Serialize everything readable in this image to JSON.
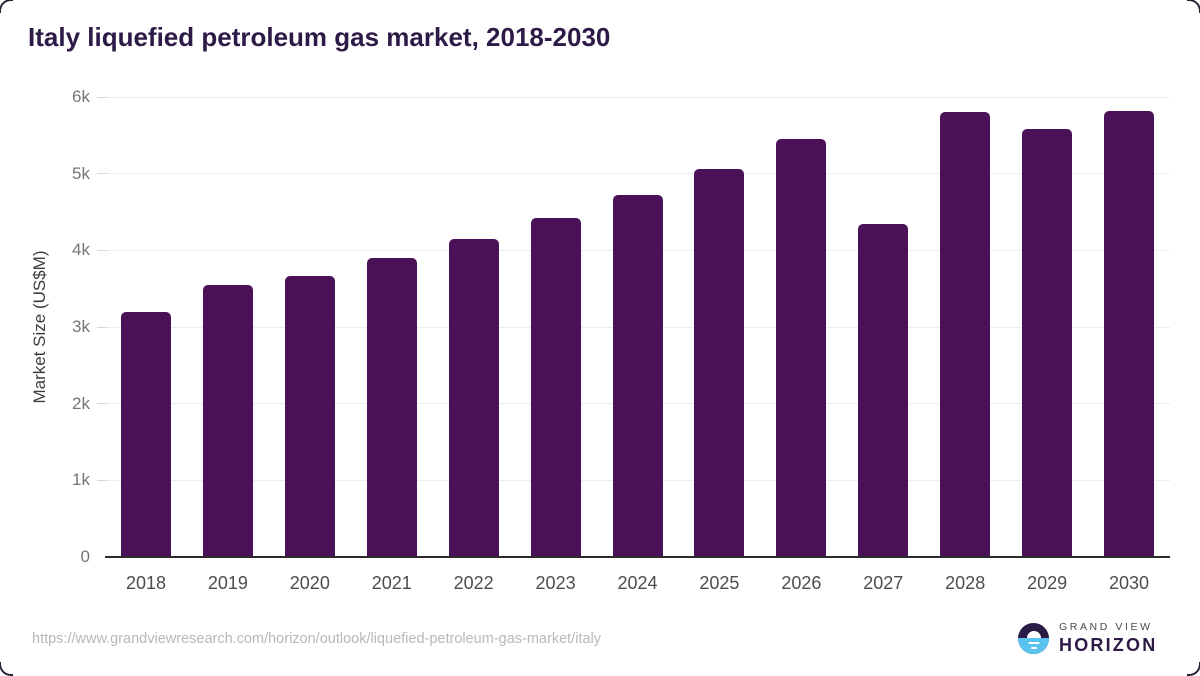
{
  "page": {
    "title": "Italy liquefied petroleum gas market, 2018-2030"
  },
  "chart_data": {
    "type": "bar",
    "title": "Italy liquefied petroleum gas market, 2018-2030",
    "categories": [
      "2018",
      "2019",
      "2020",
      "2021",
      "2022",
      "2023",
      "2024",
      "2025",
      "2026",
      "2027",
      "2028",
      "2029",
      "2030"
    ],
    "values": [
      3200,
      3550,
      3660,
      3900,
      4150,
      4420,
      4720,
      5060,
      5450,
      4340,
      5800,
      5580,
      5820
    ],
    "xlabel": "",
    "ylabel": "Market Size (US$M)",
    "ylim": [
      0,
      6000
    ],
    "ytick_step": 1000,
    "ytick_labels": [
      "0",
      "1k",
      "2k",
      "3k",
      "4k",
      "5k",
      "6k"
    ],
    "grid": true,
    "legend": "none",
    "bar_color": "#4a1158"
  },
  "footer": {
    "source_url": "https://www.grandviewresearch.com/horizon/outlook/liquefied-petroleum-gas-market/italy",
    "logo": {
      "line1": "GRAND VIEW",
      "line2": "HORIZON"
    }
  },
  "colors": {
    "bar": "#4a1158",
    "title_text": "#2e1a47",
    "gridline": "#ededed",
    "axis_line": "#2a2a2a",
    "y_tick_text": "#757575",
    "x_tick_text": "#4d4d4d",
    "url_text": "#b8b8b8",
    "logo_sky": "#2b1b47",
    "logo_sea": "#5bc3f0"
  }
}
